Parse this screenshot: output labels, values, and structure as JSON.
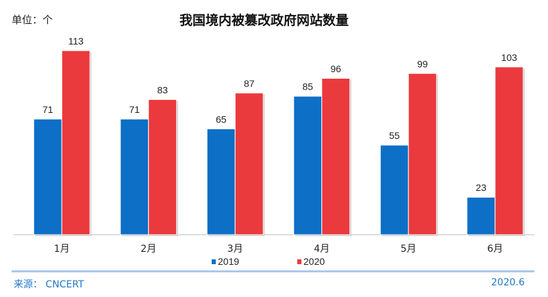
{
  "chart_data": {
    "type": "bar",
    "title": "我国境内被篡改政府网站数量",
    "unit_label": "单位：个",
    "categories": [
      "1月",
      "2月",
      "3月",
      "4月",
      "5月",
      "6月"
    ],
    "series": [
      {
        "name": "2019",
        "values": [
          71,
          71,
          65,
          85,
          55,
          23
        ],
        "color": "#0d6fc6"
      },
      {
        "name": "2020",
        "values": [
          113,
          83,
          87,
          96,
          99,
          103
        ],
        "color": "#ea3a3d"
      }
    ],
    "ylim": [
      0,
      113
    ],
    "grid": false,
    "legend": "bottom",
    "data_labels": true
  },
  "footer": {
    "source": "来源： CNCERT",
    "date": "2020.6"
  }
}
